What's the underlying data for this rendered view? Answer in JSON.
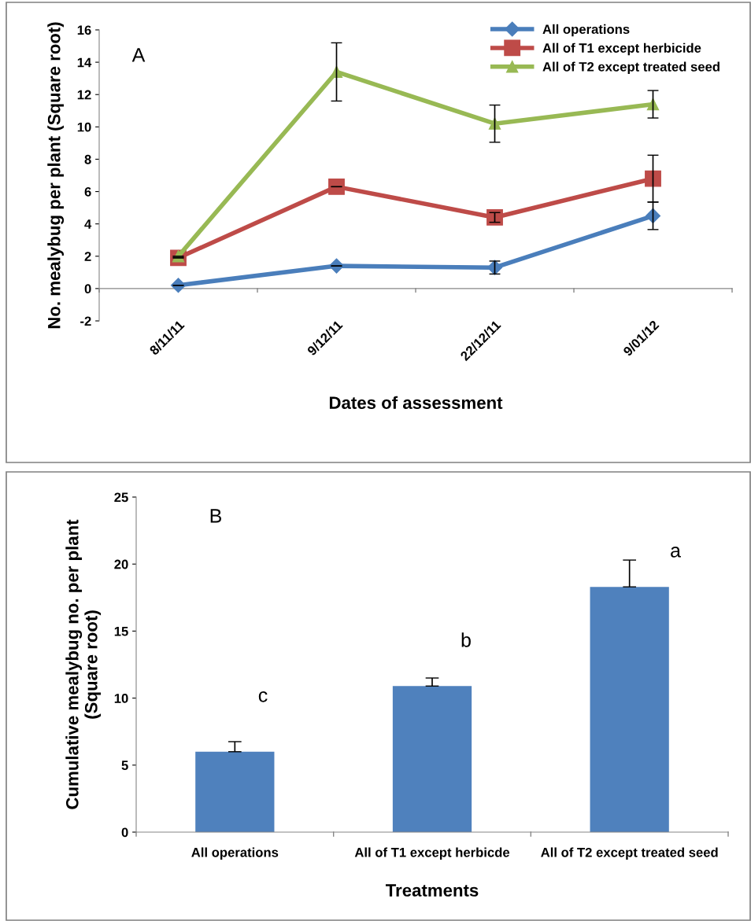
{
  "chart_data": [
    {
      "type": "line",
      "xlabel": "Dates of assessment",
      "ylabel": "No. mealybug per plant (Square root)",
      "categories": [
        "8/11/11",
        "9/12/11",
        "22/12/11",
        "9/01/12"
      ],
      "ylim": [
        -2,
        16
      ],
      "yticks": [
        -2,
        0,
        2,
        4,
        6,
        8,
        10,
        12,
        14,
        16
      ],
      "grid": false,
      "legend": "top right",
      "annotations": [
        "A"
      ],
      "series": [
        {
          "name": "All operations",
          "color": "#4a7ebb",
          "marker": "diamond",
          "values": [
            0.2,
            1.4,
            1.3,
            4.5
          ],
          "errors": [
            null,
            null,
            0.4,
            0.85
          ]
        },
        {
          "name": "All of T1 except herbicide",
          "color": "#be4b48",
          "marker": "square",
          "values": [
            1.9,
            6.3,
            4.4,
            6.8
          ],
          "errors": [
            null,
            null,
            0.3,
            1.45
          ]
        },
        {
          "name": "All of T2 except treated seed",
          "color": "#98b954",
          "marker": "triangle",
          "values": [
            2.0,
            13.4,
            10.2,
            11.4
          ],
          "errors": [
            null,
            1.8,
            1.15,
            0.85
          ]
        }
      ]
    },
    {
      "type": "bar",
      "xlabel": "Treatments",
      "ylabel": "Cumulative mealybug no. per plant\n(Square root)",
      "categories": [
        "All operations",
        "All of T1 except herbicde",
        "All of T2 except treated seed"
      ],
      "ylim": [
        0,
        25
      ],
      "yticks": [
        0,
        5,
        10,
        15,
        20,
        25
      ],
      "grid": false,
      "legend": false,
      "values": [
        6.0,
        10.9,
        18.3
      ],
      "color": "#4f81bd",
      "errors": [
        [
          6.0,
          6.75
        ],
        [
          10.9,
          11.5
        ],
        [
          18.3,
          20.3
        ]
      ],
      "annotations": [
        "B",
        "c",
        "b",
        "a"
      ]
    }
  ]
}
